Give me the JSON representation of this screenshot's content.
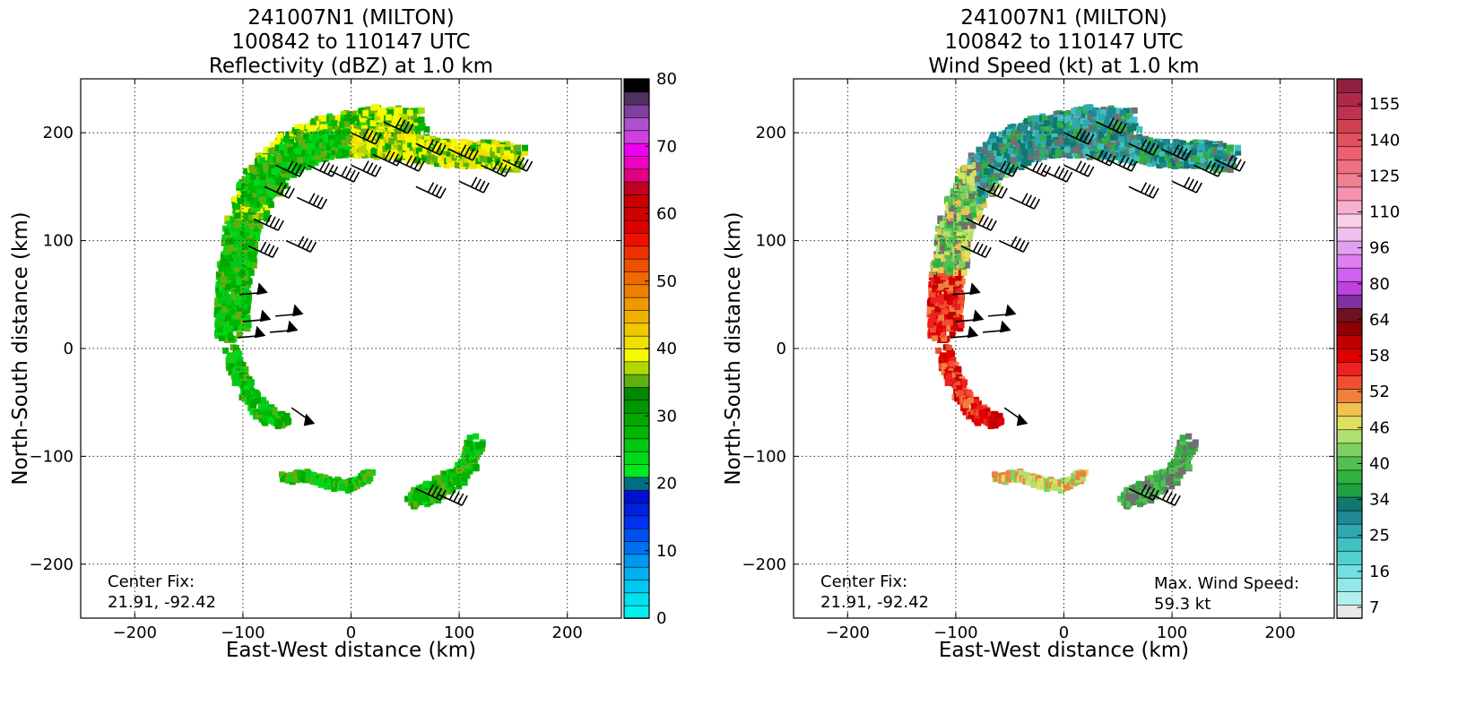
{
  "chart_data": [
    {
      "type": "heatmap",
      "title_lines": [
        "241007N1 (MILTON)",
        "100842 to 110147 UTC",
        "Reflectivity (dBZ) at 1.0 km"
      ],
      "xlabel": "East-West distance (km)",
      "ylabel": "North-South distance (km)",
      "xlim": [
        -250,
        250
      ],
      "ylim": [
        -250,
        250
      ],
      "xticks": [
        -200,
        -100,
        0,
        100,
        200
      ],
      "yticks": [
        -200,
        -100,
        0,
        100,
        200
      ],
      "grid": true,
      "annotation_lines": [
        "Center Fix:",
        "21.91, -92.42"
      ],
      "colorbar": {
        "min": 0,
        "max": 80,
        "tick_labels": [
          "0",
          "10",
          "20",
          "30",
          "40",
          "50",
          "60",
          "70",
          "80"
        ],
        "tick_values": [
          0,
          10,
          20,
          30,
          40,
          50,
          60,
          70,
          80
        ],
        "colors": [
          "#00f0f0",
          "#00e0f0",
          "#00c8f0",
          "#00b0f0",
          "#0098f0",
          "#0070f0",
          "#0050f0",
          "#0030f0",
          "#0020e0",
          "#0010d0",
          "#007080",
          "#00e820",
          "#00d818",
          "#00c810",
          "#00b800",
          "#00a800",
          "#009800",
          "#008800",
          "#60b010",
          "#b0d800",
          "#f8f800",
          "#f0e000",
          "#f0c800",
          "#f0b000",
          "#f09800",
          "#f08000",
          "#f06800",
          "#f05000",
          "#f03000",
          "#f01000",
          "#e00000",
          "#d00000",
          "#c80000",
          "#c00020",
          "#e00080",
          "#f000c0",
          "#f000f0",
          "#d040e0",
          "#b050d0",
          "#8040a0",
          "#503060",
          "#000000"
        ]
      }
    },
    {
      "type": "heatmap",
      "title_lines": [
        "241007N1 (MILTON)",
        "100842 to 110147 UTC",
        "Wind Speed (kt) at 1.0 km"
      ],
      "xlabel": "East-West distance (km)",
      "ylabel": "North-South distance (km)",
      "xlim": [
        -250,
        250
      ],
      "ylim": [
        -250,
        250
      ],
      "xticks": [
        -200,
        -100,
        0,
        100,
        200
      ],
      "yticks": [
        -200,
        -100,
        0,
        100,
        200
      ],
      "grid": true,
      "annotation_lines": [
        "Center Fix:",
        "21.91, -92.42"
      ],
      "max_wind_lines": [
        "Max. Wind Speed:",
        "59.3 kt"
      ],
      "colorbar": {
        "tick_labels": [
          "7",
          "16",
          "25",
          "34",
          "40",
          "46",
          "52",
          "58",
          "64",
          "80",
          "96",
          "110",
          "125",
          "140",
          "155"
        ],
        "colors": [
          "#e8e8e8",
          "#b0f0f0",
          "#90e8e8",
          "#70e0e0",
          "#50d0d0",
          "#40c0c0",
          "#30a8b0",
          "#208890",
          "#107870",
          "#20a040",
          "#30b040",
          "#50c050",
          "#80d060",
          "#b0e070",
          "#e0e060",
          "#f0c050",
          "#f08040",
          "#f05030",
          "#f02020",
          "#e00000",
          "#c00000",
          "#900000",
          "#701020",
          "#8030a0",
          "#c040e0",
          "#d060f0",
          "#e080f0",
          "#e0a0f0",
          "#f0c0f0",
          "#f8d0e8",
          "#f8b0d0",
          "#f890b0",
          "#f08090",
          "#f07080",
          "#f06070",
          "#e05060",
          "#d04050",
          "#c03050",
          "#b02848",
          "#902040"
        ]
      }
    }
  ]
}
